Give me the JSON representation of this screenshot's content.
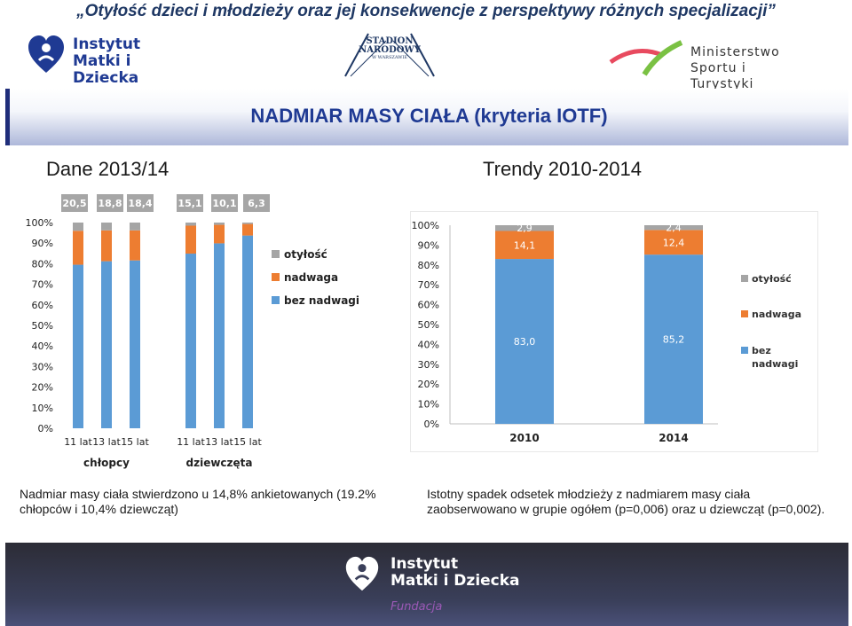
{
  "slide_title": "„Otyłość dzieci i młodzieży oraz jej konsekwencje z perspektywy różnych specjalizacji”",
  "logos": {
    "imid_line1": "Instytut",
    "imid_line2": "Matki i Dziecka",
    "stadion_line1": "STADION",
    "stadion_line2": "NARODOWY",
    "stadion_line3": "W WARSZAWIE",
    "ministry_line1": "Ministerstwo",
    "ministry_line2": "Sportu i Turystyki",
    "footer_line1": "Instytut",
    "footer_line2": "Matki i Dziecka",
    "footer_fundacja": "Fundacja"
  },
  "banner_title": "NADMIAR MASY CIAŁA (kryteria IOTF)",
  "left_heading": "Dane 2013/14",
  "right_heading": "Trendy 2010-2014",
  "note_left": "Nadmiar masy ciała stwierdzono u 14,8% ankietowanych (19.2% chłopców i  10,4% dziewcząt)",
  "note_right": "Istotny spadek odsetek młodzieży z nadmiarem masy ciała zaobserwowano w grupie ogółem (p=0,006) oraz u dziewcząt (p=0,002).",
  "colors": {
    "bez_nadwagi": "#5b9bd5",
    "nadwaga": "#ed7d31",
    "otylosc": "#a5a5a5",
    "label_box": "#a6a6a6"
  },
  "chart_data": [
    {
      "type": "bar",
      "stacked": true,
      "categories": [
        "11 lat",
        "13 lat",
        "15 lat",
        "11 lat",
        "13 lat",
        "15 lat"
      ],
      "groups": [
        {
          "label": "chłopcy",
          "indices": [
            0,
            1,
            2
          ]
        },
        {
          "label": "dziewczęta",
          "indices": [
            3,
            4,
            5
          ]
        }
      ],
      "top_labels": [
        "20,5",
        "18,8",
        "18,4",
        "15,1",
        "10,1",
        "6,3"
      ],
      "series": [
        {
          "name": "bez nadwagi",
          "values": [
            79.5,
            81.2,
            81.6,
            84.9,
            89.9,
            93.7
          ]
        },
        {
          "name": "nadwaga",
          "values": [
            16.5,
            15.0,
            14.6,
            13.6,
            9.0,
            5.6
          ]
        },
        {
          "name": "otyłość",
          "values": [
            4.0,
            3.8,
            3.8,
            1.5,
            1.1,
            0.7
          ]
        }
      ],
      "y_ticks": [
        "0%",
        "10%",
        "20%",
        "30%",
        "40%",
        "50%",
        "60%",
        "70%",
        "80%",
        "90%",
        "100%"
      ],
      "ylim": [
        0,
        100
      ],
      "legend": [
        "otyłość",
        "nadwaga",
        "bez nadwagi"
      ],
      "legend_position": "right"
    },
    {
      "type": "bar",
      "stacked": true,
      "categories": [
        "2010",
        "2014"
      ],
      "series": [
        {
          "name": "bez nadwagi",
          "values": [
            83.0,
            85.2
          ],
          "labels": [
            "83,0",
            "85,2"
          ]
        },
        {
          "name": "nadwaga",
          "values": [
            14.1,
            12.4
          ],
          "labels": [
            "14,1",
            "12,4"
          ]
        },
        {
          "name": "otyłość",
          "values": [
            2.9,
            2.4
          ],
          "labels": [
            "2,9",
            "2,4"
          ]
        }
      ],
      "y_ticks": [
        "0%",
        "10%",
        "20%",
        "30%",
        "40%",
        "50%",
        "60%",
        "70%",
        "80%",
        "90%",
        "100%"
      ],
      "ylim": [
        0,
        100
      ],
      "legend": [
        "otyłość",
        "nadwaga",
        "bez nadwagi"
      ],
      "legend_position": "right"
    }
  ]
}
